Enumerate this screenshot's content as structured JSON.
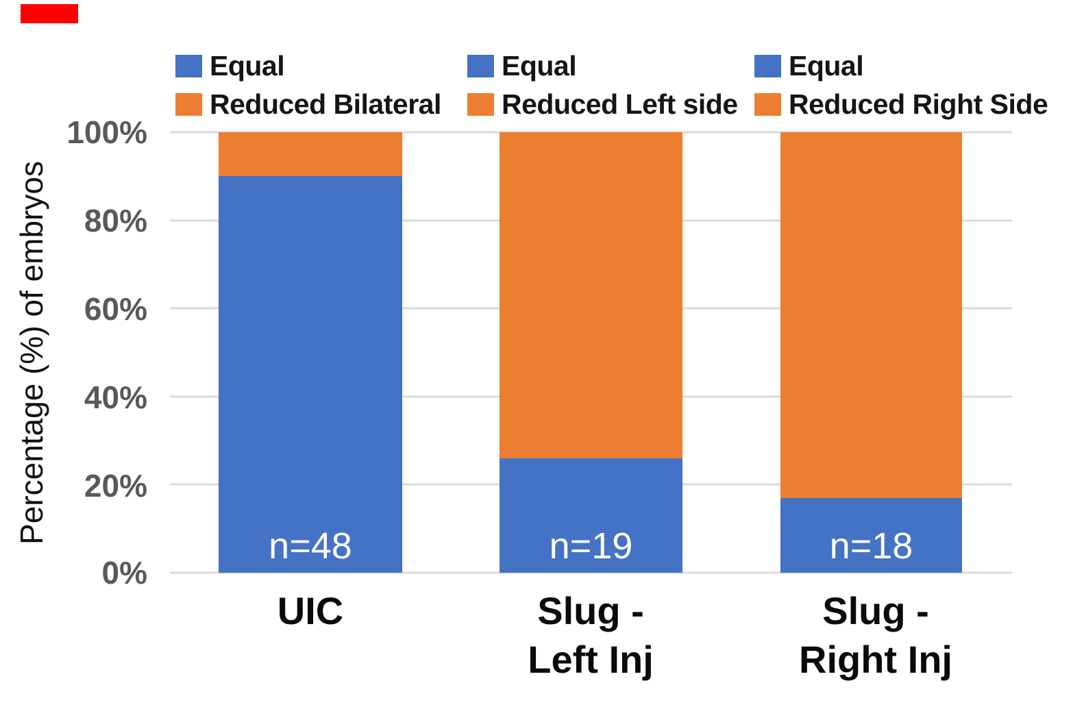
{
  "annotation_marker": {
    "color": "#FF0000"
  },
  "colors": {
    "equal_blue": "#4472C4",
    "reduced_orange": "#ED7D31",
    "gridline": "#DBDBDB",
    "tick_text": "#595959",
    "bar_count_text": "#FFFFFF"
  },
  "chart_data": {
    "type": "bar",
    "stacked": true,
    "ylabel": "Percentage (%) of embryos",
    "xlabel": "",
    "ylim": [
      0,
      100
    ],
    "grid": true,
    "legend_position": "top",
    "yticks": [
      "100%",
      "80%",
      "60%",
      "40%",
      "20%",
      "0%"
    ],
    "categories": [
      "UIC",
      "Slug -\nLeft Inj",
      "Slug -\nRight Inj"
    ],
    "series": [
      {
        "name": "Equal",
        "color": "#4472C4",
        "values": [
          90,
          26,
          17
        ]
      },
      {
        "name": "Reduced",
        "color": "#ED7D31",
        "values": [
          10,
          74,
          83
        ],
        "per_bar_labels": [
          "Reduced Bilateral",
          "Reduced Left side",
          "Reduced Right Side"
        ]
      }
    ],
    "bar_counts": [
      "n=48",
      "n=19",
      "n=18"
    ]
  },
  "legend_groups": [
    {
      "items": [
        "Equal",
        "Reduced Bilateral"
      ]
    },
    {
      "items": [
        "Equal",
        "Reduced Left side"
      ]
    },
    {
      "items": [
        "Equal",
        "Reduced Right Side"
      ]
    }
  ]
}
